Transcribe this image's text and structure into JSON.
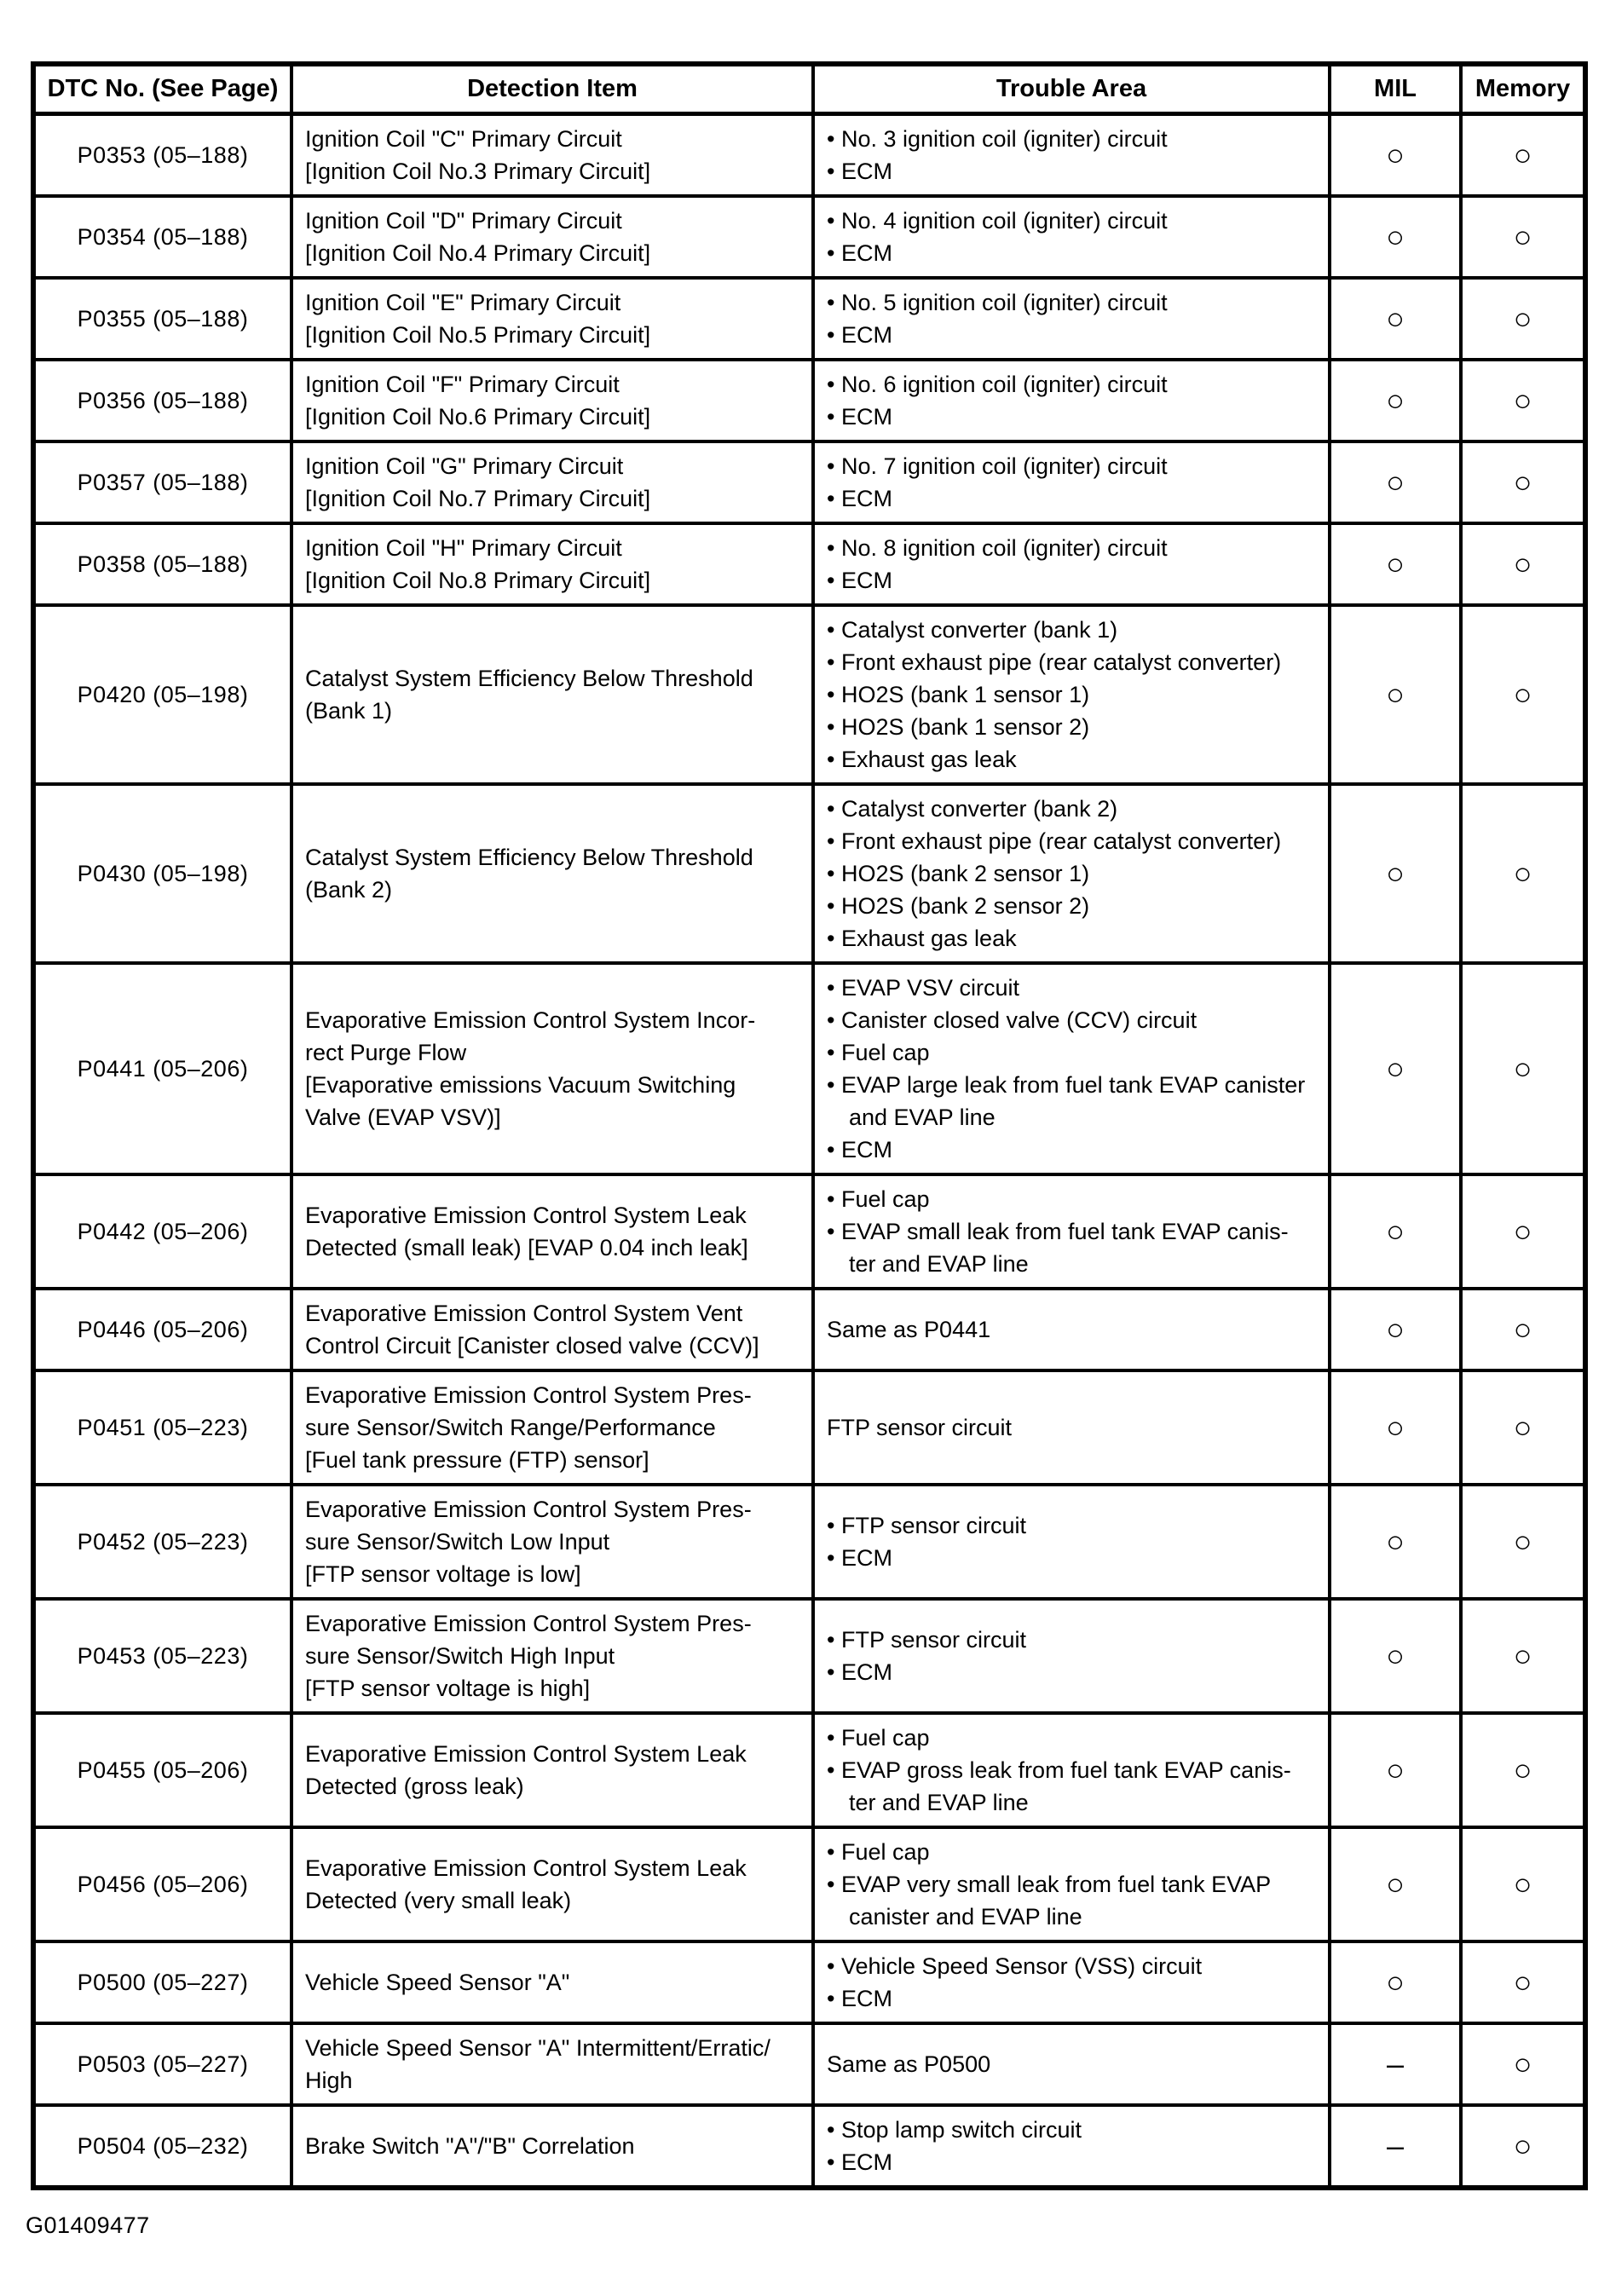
{
  "page": {
    "figure_code": "G01409477"
  },
  "table": {
    "headers": [
      "DTC No. (See Page)",
      "Detection Item",
      "Trouble Area",
      "MIL",
      "Memory"
    ],
    "symbols": {
      "circle": "○",
      "dash": "–"
    },
    "rows": [
      {
        "dtc": "P0353 (05–188)",
        "detection": [
          "Ignition Coil \"C\" Primary Circuit",
          "[Ignition Coil No.3 Primary Circuit]"
        ],
        "trouble": [
          "• No. 3 ignition coil (igniter) circuit",
          "• ECM"
        ],
        "mil": "circle",
        "memory": "circle"
      },
      {
        "dtc": "P0354 (05–188)",
        "detection": [
          "Ignition Coil \"D\" Primary Circuit",
          "[Ignition Coil No.4 Primary Circuit]"
        ],
        "trouble": [
          "• No. 4 ignition coil (igniter) circuit",
          "• ECM"
        ],
        "mil": "circle",
        "memory": "circle"
      },
      {
        "dtc": "P0355 (05–188)",
        "detection": [
          "Ignition Coil \"E\" Primary Circuit",
          "[Ignition Coil No.5 Primary Circuit]"
        ],
        "trouble": [
          "• No. 5 ignition coil (igniter) circuit",
          "• ECM"
        ],
        "mil": "circle",
        "memory": "circle"
      },
      {
        "dtc": "P0356 (05–188)",
        "detection": [
          "Ignition Coil \"F\" Primary Circuit",
          "[Ignition Coil No.6 Primary Circuit]"
        ],
        "trouble": [
          "• No. 6 ignition coil (igniter) circuit",
          "• ECM"
        ],
        "mil": "circle",
        "memory": "circle"
      },
      {
        "dtc": "P0357 (05–188)",
        "detection": [
          "Ignition Coil \"G\" Primary Circuit",
          "[Ignition Coil No.7 Primary Circuit]"
        ],
        "trouble": [
          "• No. 7 ignition coil (igniter) circuit",
          "• ECM"
        ],
        "mil": "circle",
        "memory": "circle"
      },
      {
        "dtc": "P0358 (05–188)",
        "detection": [
          "Ignition Coil \"H\" Primary Circuit",
          "[Ignition Coil No.8 Primary Circuit]"
        ],
        "trouble": [
          "• No. 8 ignition coil (igniter) circuit",
          "• ECM"
        ],
        "mil": "circle",
        "memory": "circle"
      },
      {
        "dtc": "P0420 (05–198)",
        "detection": [
          "Catalyst System Efficiency Below Threshold",
          "(Bank 1)"
        ],
        "trouble": [
          "• Catalyst converter (bank 1)",
          "• Front exhaust pipe (rear catalyst converter)",
          "• HO2S (bank 1 sensor 1)",
          "• HO2S (bank 1 sensor 2)",
          "• Exhaust gas leak"
        ],
        "mil": "circle",
        "memory": "circle"
      },
      {
        "dtc": "P0430 (05–198)",
        "detection": [
          "Catalyst System Efficiency Below Threshold",
          "(Bank 2)"
        ],
        "trouble": [
          "• Catalyst converter (bank 2)",
          "• Front exhaust pipe (rear catalyst converter)",
          "• HO2S (bank 2 sensor 1)",
          "• HO2S (bank 2 sensor 2)",
          "• Exhaust gas leak"
        ],
        "mil": "circle",
        "memory": "circle"
      },
      {
        "dtc": "P0441 (05–206)",
        "detection": [
          "Evaporative Emission Control System Incor-",
          "rect Purge Flow",
          "[Evaporative emissions Vacuum Switching",
          "Valve (EVAP VSV)]"
        ],
        "trouble": [
          "• EVAP VSV circuit",
          "• Canister closed valve (CCV) circuit",
          "• Fuel cap",
          "• EVAP large leak from fuel tank EVAP canister",
          "and EVAP line",
          "• ECM"
        ],
        "mil": "circle",
        "memory": "circle"
      },
      {
        "dtc": "P0442 (05–206)",
        "detection": [
          "Evaporative Emission Control System Leak",
          "Detected (small leak) [EVAP 0.04 inch leak]"
        ],
        "trouble": [
          "• Fuel cap",
          "• EVAP small leak from fuel tank EVAP canis-",
          "ter and EVAP line"
        ],
        "mil": "circle",
        "memory": "circle"
      },
      {
        "dtc": "P0446 (05–206)",
        "detection": [
          "Evaporative Emission Control System Vent",
          "Control Circuit [Canister closed valve (CCV)]"
        ],
        "trouble": [
          "Same as P0441"
        ],
        "mil": "circle",
        "memory": "circle"
      },
      {
        "dtc": "P0451 (05–223)",
        "detection": [
          "Evaporative Emission Control System Pres-",
          "sure Sensor/Switch Range/Performance",
          "[Fuel tank pressure (FTP) sensor]"
        ],
        "trouble": [
          "FTP sensor circuit"
        ],
        "mil": "circle",
        "memory": "circle"
      },
      {
        "dtc": "P0452 (05–223)",
        "detection": [
          "Evaporative Emission Control System Pres-",
          "sure Sensor/Switch Low Input",
          "[FTP sensor voltage is low]"
        ],
        "trouble": [
          "• FTP sensor circuit",
          "• ECM"
        ],
        "mil": "circle",
        "memory": "circle"
      },
      {
        "dtc": "P0453 (05–223)",
        "detection": [
          "Evaporative Emission Control System Pres-",
          "sure Sensor/Switch High Input",
          "[FTP sensor voltage is high]"
        ],
        "trouble": [
          "• FTP sensor circuit",
          "• ECM"
        ],
        "mil": "circle",
        "memory": "circle"
      },
      {
        "dtc": "P0455 (05–206)",
        "detection": [
          "Evaporative Emission Control System Leak",
          "Detected (gross leak)"
        ],
        "trouble": [
          "• Fuel cap",
          "• EVAP gross leak from fuel tank EVAP canis-",
          "ter and EVAP line"
        ],
        "mil": "circle",
        "memory": "circle"
      },
      {
        "dtc": "P0456 (05–206)",
        "detection": [
          "Evaporative Emission Control System Leak",
          "Detected (very small leak)"
        ],
        "trouble": [
          "• Fuel cap",
          "• EVAP very small leak from fuel tank EVAP",
          "canister and EVAP line"
        ],
        "mil": "circle",
        "memory": "circle"
      },
      {
        "dtc": "P0500 (05–227)",
        "detection": [
          "Vehicle Speed Sensor \"A\""
        ],
        "trouble": [
          "• Vehicle Speed Sensor (VSS) circuit",
          "• ECM"
        ],
        "mil": "circle",
        "memory": "circle"
      },
      {
        "dtc": "P0503 (05–227)",
        "detection": [
          "Vehicle Speed Sensor \"A\" Intermittent/Erratic/",
          "High"
        ],
        "trouble": [
          "Same as P0500"
        ],
        "mil": "dash",
        "memory": "circle"
      },
      {
        "dtc": "P0504 (05–232)",
        "detection": [
          "Brake Switch \"A\"/\"B\" Correlation"
        ],
        "trouble": [
          "• Stop lamp switch circuit",
          "• ECM"
        ],
        "mil": "dash",
        "memory": "circle"
      }
    ]
  }
}
